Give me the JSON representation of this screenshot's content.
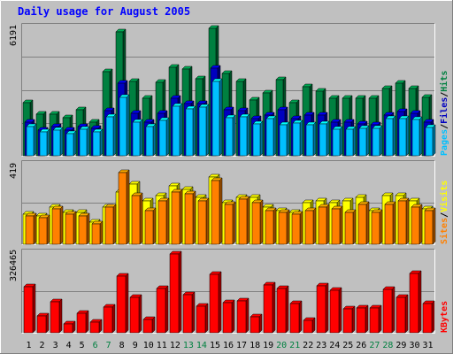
{
  "chart_data": {
    "type": "bar",
    "title": "Daily usage for August 2005",
    "categories": [
      "1",
      "2",
      "3",
      "4",
      "5",
      "6",
      "7",
      "8",
      "9",
      "10",
      "11",
      "12",
      "13",
      "14",
      "15",
      "16",
      "17",
      "18",
      "19",
      "20",
      "21",
      "22",
      "23",
      "24",
      "25",
      "26",
      "27",
      "28",
      "29",
      "30",
      "31"
    ],
    "weekend_days": [
      "6",
      "7",
      "13",
      "14",
      "20",
      "21",
      "27",
      "28"
    ],
    "panels": [
      {
        "id": "hits-files-pages",
        "ymax_label": "6191",
        "ymax": 6191,
        "legend": [
          "Pages",
          "/",
          "Files",
          "/",
          "Hits"
        ],
        "series": [
          {
            "name": "Hits",
            "color": "#008040",
            "values": [
              2580,
              2010,
              2010,
              1830,
              2250,
              1630,
              4100,
              6030,
              3610,
              2790,
              3570,
              4310,
              4220,
              3750,
              6191,
              4000,
              3610,
              2690,
              3060,
              3710,
              2580,
              3360,
              3150,
              2780,
              2800,
              2790,
              2800,
              3280,
              3530,
              3260,
              2850
            ]
          },
          {
            "name": "Files",
            "color": "#0000c0",
            "values": [
              1620,
              1260,
              1440,
              1260,
              1440,
              1340,
              2190,
              3520,
              2060,
              1620,
              2060,
              2790,
              2520,
              2550,
              4240,
              2240,
              2190,
              1790,
              1970,
              2240,
              1800,
              1990,
              1980,
              1620,
              1620,
              1530,
              1510,
              1990,
              2150,
              2080,
              1640
            ]
          },
          {
            "name": "Pages",
            "color": "#00c0ff",
            "values": [
              1420,
              1140,
              1230,
              1080,
              1270,
              1180,
              1880,
              2820,
              1650,
              1440,
              1740,
              2400,
              2260,
              2350,
              3600,
              1860,
              1880,
              1530,
              1800,
              1500,
              1570,
              1500,
              1530,
              1300,
              1300,
              1350,
              1340,
              1790,
              1810,
              1750,
              1390
            ]
          }
        ]
      },
      {
        "id": "sites-visits",
        "ymax_label": "419",
        "ymax": 419,
        "legend": [
          "Sites",
          "/",
          "Visits"
        ],
        "series": [
          {
            "name": "Visits",
            "color": "#ffff00",
            "values": [
              160,
              150,
              200,
              170,
              170,
              120,
              200,
              280,
              320,
              230,
              260,
              310,
              290,
              250,
              360,
              220,
              250,
              250,
              200,
              180,
              170,
              220,
              230,
              220,
              230,
              250,
              180,
              260,
              260,
              230,
              190
            ]
          },
          {
            "name": "Sites",
            "color": "#ff8000",
            "values": [
              150,
              140,
              190,
              160,
              150,
              110,
              200,
              380,
              260,
              180,
              230,
              280,
              270,
              230,
              340,
              210,
              240,
              220,
              180,
              170,
              160,
              180,
              200,
              190,
              170,
              210,
              170,
              210,
              230,
              200,
              180
            ]
          }
        ]
      },
      {
        "id": "kbytes",
        "ymax_label": "326465",
        "ymax": 326465,
        "legend": [
          "KBytes"
        ],
        "series": [
          {
            "name": "KBytes",
            "color": "#ff0000",
            "values": [
              190000,
              68000,
              128000,
              36000,
              82000,
              44000,
              105000,
              234000,
              145000,
              55000,
              182000,
              326465,
              158000,
              111000,
              241000,
              123000,
              131000,
              65000,
              197000,
              185000,
              120000,
              53000,
              196000,
              176000,
              98000,
              104000,
              104000,
              178000,
              146000,
              246000,
              122000
            ]
          }
        ]
      }
    ]
  }
}
